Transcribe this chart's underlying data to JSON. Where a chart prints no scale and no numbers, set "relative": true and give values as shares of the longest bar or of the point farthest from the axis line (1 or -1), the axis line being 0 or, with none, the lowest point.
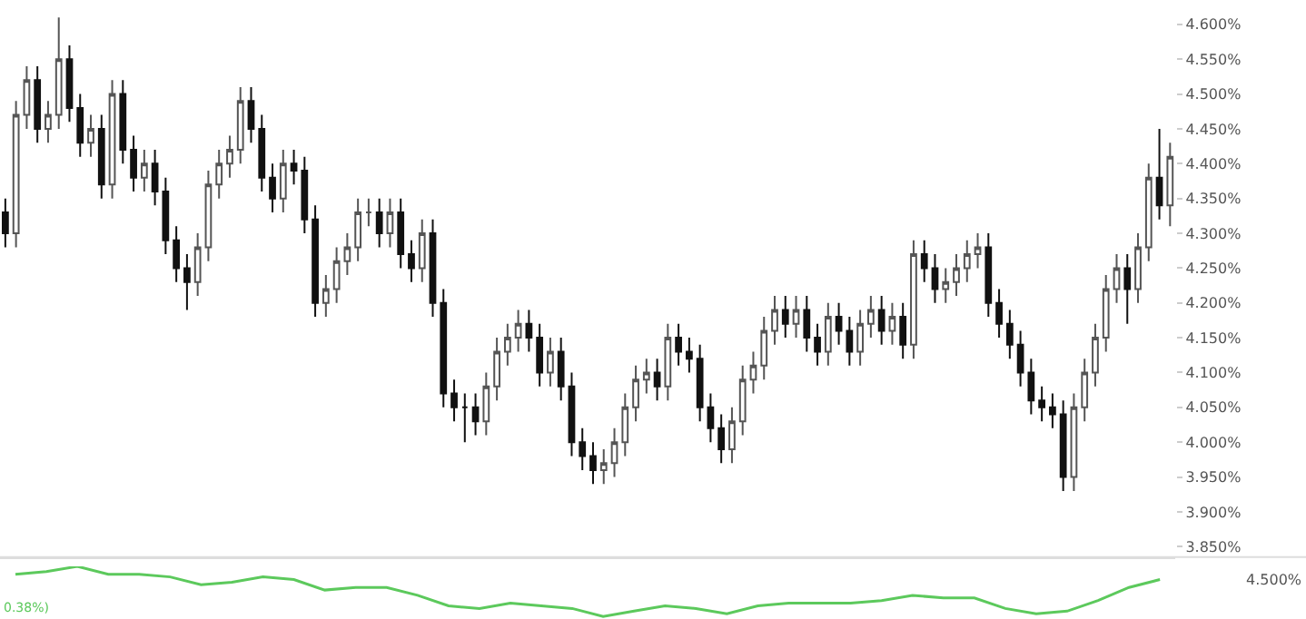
{
  "chart_data": [
    {
      "type": "candlestick",
      "tick_labels": "y",
      "categories": [
        null,
        null,
        null,
        null,
        null,
        null,
        null,
        null,
        null,
        null,
        null,
        null,
        null,
        null,
        null,
        null,
        null,
        null,
        null,
        null,
        null,
        null,
        null,
        null,
        null,
        null,
        null,
        null,
        null,
        null,
        null,
        null,
        null,
        null,
        null,
        null,
        null,
        null,
        null,
        null,
        null,
        null,
        null,
        null,
        null,
        null,
        null,
        null,
        null,
        null,
        null,
        null,
        null,
        null,
        null,
        null,
        null,
        null,
        null,
        null,
        null,
        null,
        null,
        null,
        null,
        null,
        null,
        null,
        null,
        null,
        null,
        null,
        null,
        null,
        null,
        null,
        null,
        null,
        null,
        null,
        null,
        null,
        null,
        null,
        null,
        null,
        null,
        null,
        null,
        null,
        null,
        null,
        null,
        null,
        null,
        null,
        null,
        null,
        null,
        null,
        null,
        null,
        null,
        null,
        null,
        null,
        null,
        null,
        null,
        null
      ],
      "ohlc": [
        [
          4.33,
          4.35,
          4.28,
          4.3
        ],
        [
          4.3,
          4.49,
          4.28,
          4.47
        ],
        [
          4.47,
          4.54,
          4.45,
          4.52
        ],
        [
          4.52,
          4.54,
          4.43,
          4.45
        ],
        [
          4.45,
          4.49,
          4.43,
          4.47
        ],
        [
          4.47,
          4.61,
          4.45,
          4.55
        ],
        [
          4.55,
          4.57,
          4.46,
          4.48
        ],
        [
          4.48,
          4.5,
          4.41,
          4.43
        ],
        [
          4.43,
          4.47,
          4.41,
          4.45
        ],
        [
          4.45,
          4.47,
          4.35,
          4.37
        ],
        [
          4.37,
          4.52,
          4.35,
          4.5
        ],
        [
          4.5,
          4.52,
          4.4,
          4.42
        ],
        [
          4.42,
          4.44,
          4.36,
          4.38
        ],
        [
          4.38,
          4.42,
          4.36,
          4.4
        ],
        [
          4.4,
          4.42,
          4.34,
          4.36
        ],
        [
          4.36,
          4.38,
          4.27,
          4.29
        ],
        [
          4.29,
          4.31,
          4.23,
          4.25
        ],
        [
          4.25,
          4.27,
          4.19,
          4.23
        ],
        [
          4.23,
          4.3,
          4.21,
          4.28
        ],
        [
          4.28,
          4.39,
          4.26,
          4.37
        ],
        [
          4.37,
          4.42,
          4.35,
          4.4
        ],
        [
          4.4,
          4.44,
          4.38,
          4.42
        ],
        [
          4.42,
          4.51,
          4.4,
          4.49
        ],
        [
          4.49,
          4.51,
          4.43,
          4.45
        ],
        [
          4.45,
          4.47,
          4.36,
          4.38
        ],
        [
          4.38,
          4.4,
          4.33,
          4.35
        ],
        [
          4.35,
          4.42,
          4.33,
          4.4
        ],
        [
          4.4,
          4.42,
          4.37,
          4.39
        ],
        [
          4.39,
          4.41,
          4.3,
          4.32
        ],
        [
          4.32,
          4.34,
          4.18,
          4.2
        ],
        [
          4.2,
          4.24,
          4.18,
          4.22
        ],
        [
          4.22,
          4.28,
          4.2,
          4.26
        ],
        [
          4.26,
          4.3,
          4.24,
          4.28
        ],
        [
          4.28,
          4.35,
          4.26,
          4.33
        ],
        [
          4.33,
          4.35,
          4.31,
          4.33
        ],
        [
          4.33,
          4.35,
          4.28,
          4.3
        ],
        [
          4.3,
          4.35,
          4.28,
          4.33
        ],
        [
          4.33,
          4.35,
          4.25,
          4.27
        ],
        [
          4.27,
          4.29,
          4.23,
          4.25
        ],
        [
          4.25,
          4.32,
          4.23,
          4.3
        ],
        [
          4.3,
          4.32,
          4.18,
          4.2
        ],
        [
          4.2,
          4.22,
          4.05,
          4.07
        ],
        [
          4.07,
          4.09,
          4.03,
          4.05
        ],
        [
          4.05,
          4.07,
          4.0,
          4.05
        ],
        [
          4.05,
          4.07,
          4.01,
          4.03
        ],
        [
          4.03,
          4.1,
          4.01,
          4.08
        ],
        [
          4.08,
          4.15,
          4.06,
          4.13
        ],
        [
          4.13,
          4.17,
          4.11,
          4.15
        ],
        [
          4.15,
          4.19,
          4.13,
          4.17
        ],
        [
          4.17,
          4.19,
          4.13,
          4.15
        ],
        [
          4.15,
          4.17,
          4.08,
          4.1
        ],
        [
          4.1,
          4.15,
          4.08,
          4.13
        ],
        [
          4.13,
          4.15,
          4.06,
          4.08
        ],
        [
          4.08,
          4.1,
          3.98,
          4.0
        ],
        [
          4.0,
          4.02,
          3.96,
          3.98
        ],
        [
          3.98,
          4.0,
          3.94,
          3.96
        ],
        [
          3.96,
          3.99,
          3.94,
          3.97
        ],
        [
          3.97,
          4.02,
          3.95,
          4.0
        ],
        [
          4.0,
          4.07,
          3.98,
          4.05
        ],
        [
          4.05,
          4.11,
          4.03,
          4.09
        ],
        [
          4.09,
          4.12,
          4.07,
          4.1
        ],
        [
          4.1,
          4.12,
          4.06,
          4.08
        ],
        [
          4.08,
          4.17,
          4.06,
          4.15
        ],
        [
          4.15,
          4.17,
          4.11,
          4.13
        ],
        [
          4.13,
          4.15,
          4.1,
          4.12
        ],
        [
          4.12,
          4.14,
          4.03,
          4.05
        ],
        [
          4.05,
          4.07,
          4.0,
          4.02
        ],
        [
          4.02,
          4.04,
          3.97,
          3.99
        ],
        [
          3.99,
          4.05,
          3.97,
          4.03
        ],
        [
          4.03,
          4.11,
          4.01,
          4.09
        ],
        [
          4.09,
          4.13,
          4.07,
          4.11
        ],
        [
          4.11,
          4.18,
          4.09,
          4.16
        ],
        [
          4.16,
          4.21,
          4.14,
          4.19
        ],
        [
          4.19,
          4.21,
          4.15,
          4.17
        ],
        [
          4.17,
          4.21,
          4.15,
          4.19
        ],
        [
          4.19,
          4.21,
          4.13,
          4.15
        ],
        [
          4.15,
          4.17,
          4.11,
          4.13
        ],
        [
          4.13,
          4.2,
          4.11,
          4.18
        ],
        [
          4.18,
          4.2,
          4.14,
          4.16
        ],
        [
          4.16,
          4.18,
          4.11,
          4.13
        ],
        [
          4.13,
          4.19,
          4.11,
          4.17
        ],
        [
          4.17,
          4.21,
          4.15,
          4.19
        ],
        [
          4.19,
          4.21,
          4.14,
          4.16
        ],
        [
          4.16,
          4.2,
          4.14,
          4.18
        ],
        [
          4.18,
          4.2,
          4.12,
          4.14
        ],
        [
          4.14,
          4.29,
          4.12,
          4.27
        ],
        [
          4.27,
          4.29,
          4.23,
          4.25
        ],
        [
          4.25,
          4.27,
          4.2,
          4.22
        ],
        [
          4.22,
          4.25,
          4.2,
          4.23
        ],
        [
          4.23,
          4.27,
          4.21,
          4.25
        ],
        [
          4.25,
          4.29,
          4.23,
          4.27
        ],
        [
          4.27,
          4.3,
          4.25,
          4.28
        ],
        [
          4.28,
          4.3,
          4.18,
          4.2
        ],
        [
          4.2,
          4.22,
          4.15,
          4.17
        ],
        [
          4.17,
          4.19,
          4.12,
          4.14
        ],
        [
          4.14,
          4.16,
          4.08,
          4.1
        ],
        [
          4.1,
          4.12,
          4.04,
          4.06
        ],
        [
          4.06,
          4.08,
          4.03,
          4.05
        ],
        [
          4.05,
          4.07,
          4.02,
          4.04
        ],
        [
          4.04,
          4.06,
          3.93,
          3.95
        ],
        [
          3.95,
          4.07,
          3.93,
          4.05
        ],
        [
          4.05,
          4.12,
          4.03,
          4.1
        ],
        [
          4.1,
          4.17,
          4.08,
          4.15
        ],
        [
          4.15,
          4.24,
          4.13,
          4.22
        ],
        [
          4.22,
          4.27,
          4.2,
          4.25
        ],
        [
          4.25,
          4.27,
          4.17,
          4.22
        ],
        [
          4.22,
          4.3,
          4.2,
          4.28
        ],
        [
          4.28,
          4.4,
          4.26,
          4.38
        ],
        [
          4.38,
          4.45,
          4.32,
          4.34
        ],
        [
          4.34,
          4.43,
          4.31,
          4.41
        ]
      ],
      "ylim": [
        3.835,
        4.635
      ],
      "yticks": [
        {
          "value": 3.85,
          "label": "3.850%"
        },
        {
          "value": 3.9,
          "label": "3.900%"
        },
        {
          "value": 3.95,
          "label": "3.950%"
        },
        {
          "value": 4.0,
          "label": "4.000%"
        },
        {
          "value": 4.05,
          "label": "4.050%"
        },
        {
          "value": 4.1,
          "label": "4.100%"
        },
        {
          "value": 4.15,
          "label": "4.150%"
        },
        {
          "value": 4.2,
          "label": "4.200%"
        },
        {
          "value": 4.25,
          "label": "4.250%"
        },
        {
          "value": 4.3,
          "label": "4.300%"
        },
        {
          "value": 4.35,
          "label": "4.350%"
        },
        {
          "value": 4.4,
          "label": "4.400%"
        },
        {
          "value": 4.45,
          "label": "4.450%"
        },
        {
          "value": 4.5,
          "label": "4.500%"
        },
        {
          "value": 4.55,
          "label": "4.550%"
        },
        {
          "value": 4.6,
          "label": "4.600%"
        }
      ]
    },
    {
      "type": "line",
      "relative": true,
      "tick_labels": false,
      "marker": "none",
      "categories": [
        null,
        null,
        null,
        null,
        null,
        null,
        null,
        null,
        null,
        null,
        null,
        null,
        null,
        null,
        null,
        null,
        null,
        null,
        null,
        null,
        null,
        null,
        null,
        null,
        null,
        null,
        null,
        null,
        null,
        null,
        null,
        null,
        null,
        null,
        null,
        null,
        null,
        null
      ],
      "series": [
        {
          "color": "#5cc95c",
          "values": [
            0.85,
            0.9,
            1.0,
            0.85,
            0.85,
            0.8,
            0.65,
            0.7,
            0.8,
            0.75,
            0.55,
            0.6,
            0.6,
            0.45,
            0.25,
            0.2,
            0.3,
            0.25,
            0.2,
            0.05,
            0.15,
            0.25,
            0.2,
            0.1,
            0.25,
            0.3,
            0.3,
            0.3,
            0.35,
            0.45,
            0.4,
            0.4,
            0.2,
            0.1,
            0.15,
            0.35,
            0.6,
            0.75
          ]
        }
      ],
      "annotations": [
        "0.38%)",
        "4.500%"
      ]
    }
  ]
}
